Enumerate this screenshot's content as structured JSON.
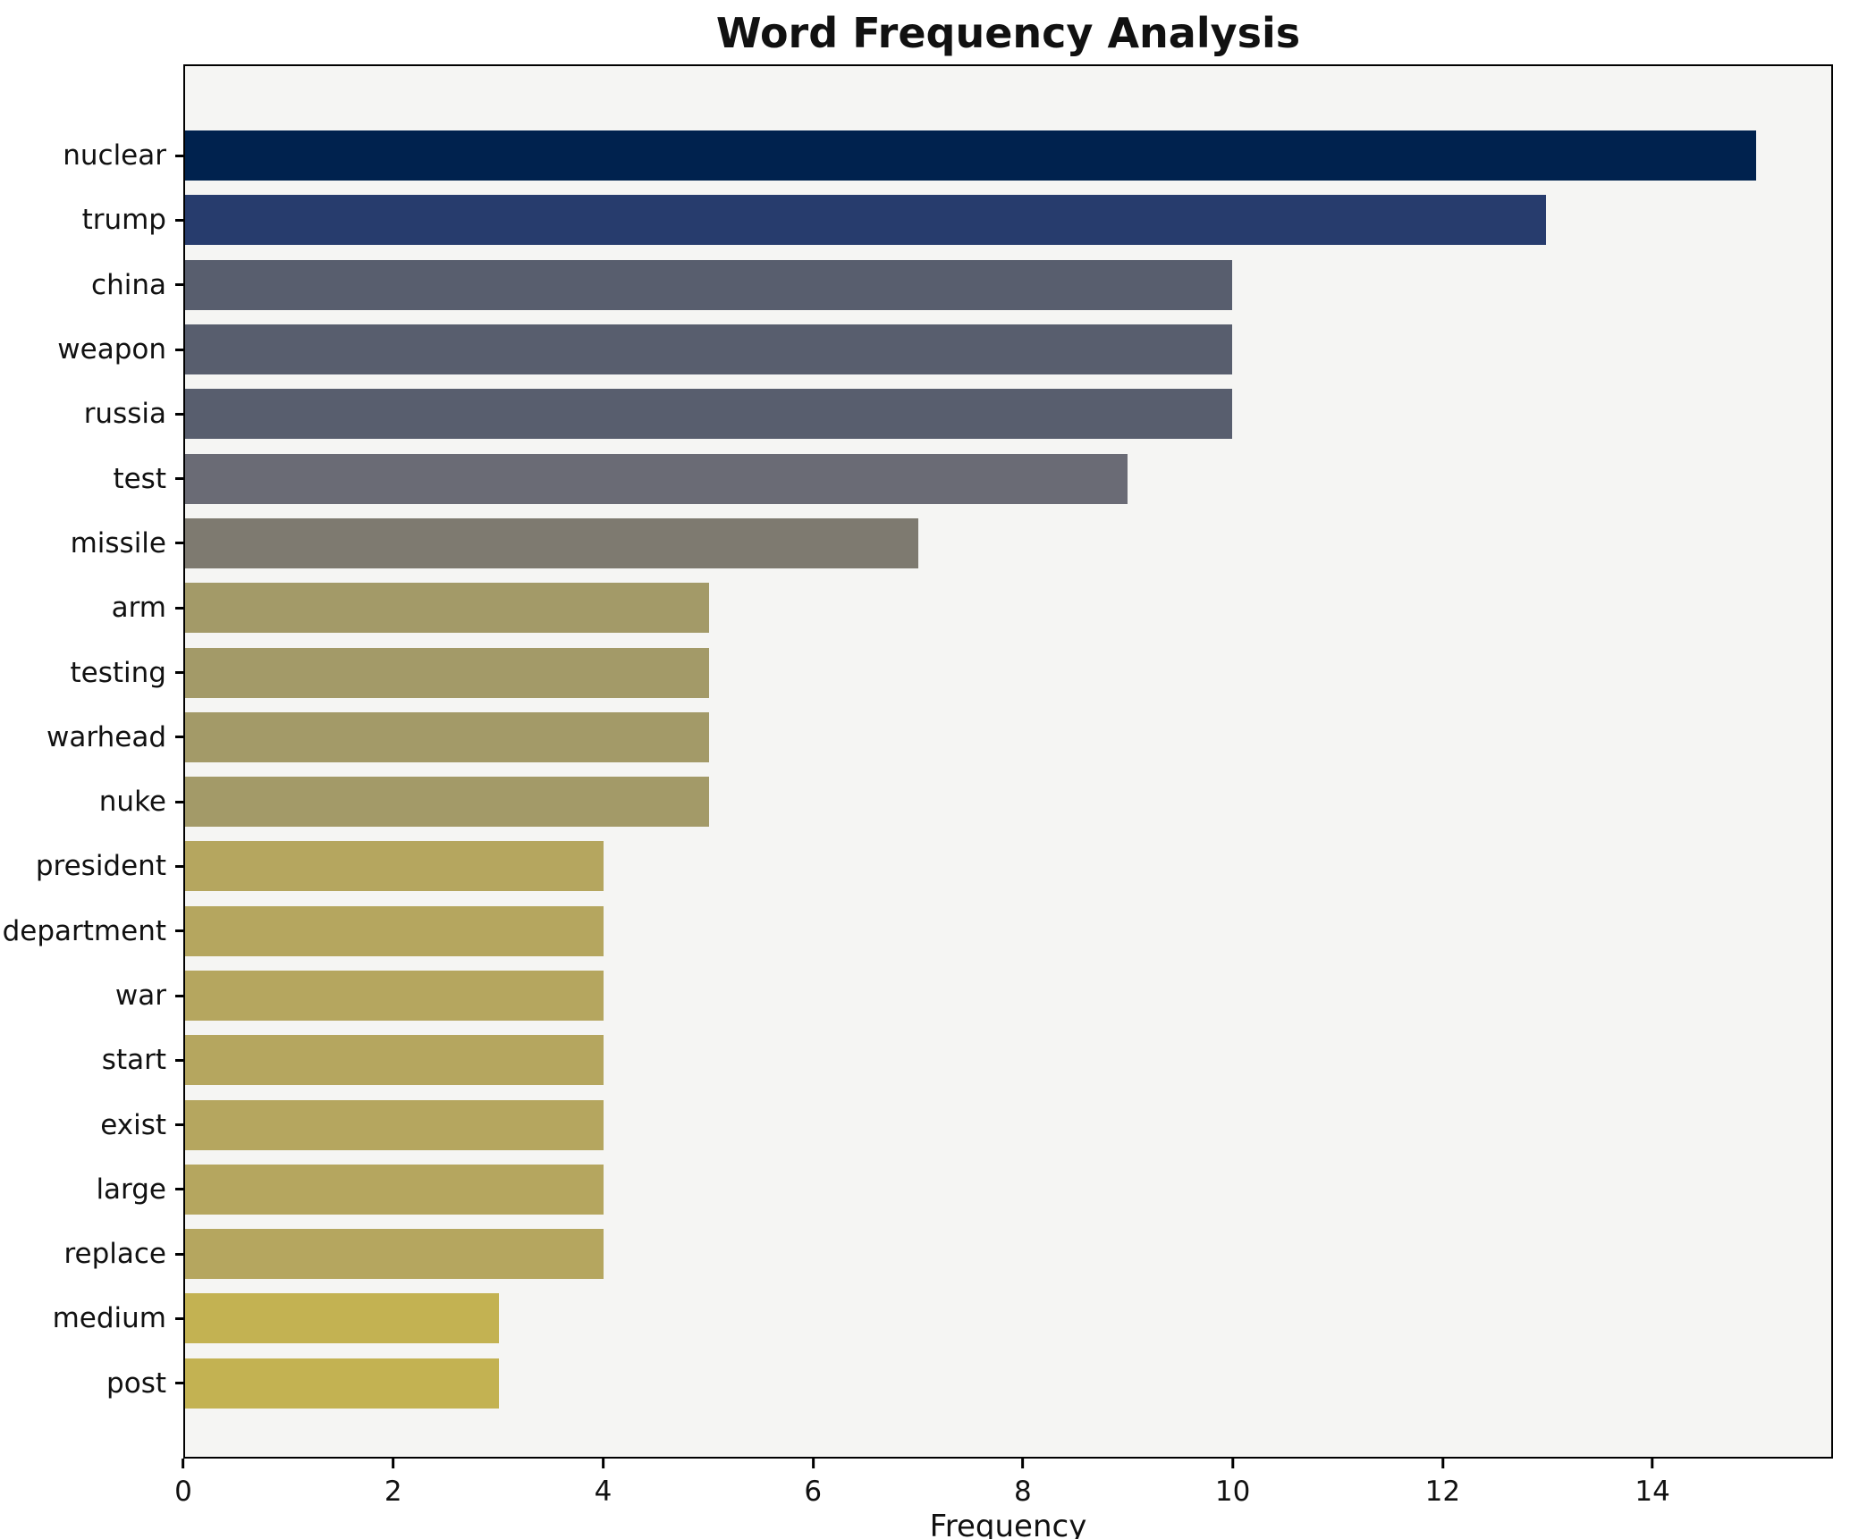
{
  "title": "Word Frequency Analysis",
  "chart_data": {
    "type": "bar",
    "orientation": "horizontal",
    "title": "Word Frequency Analysis",
    "xlabel": "Frequency",
    "ylabel": "",
    "xlim": [
      0,
      15.72
    ],
    "xticks": [
      0,
      2,
      4,
      6,
      8,
      10,
      12,
      14
    ],
    "grid": false,
    "legend": false,
    "plot_background": "#f5f5f3",
    "figure_background": "#ffffff",
    "categories": [
      "nuclear",
      "trump",
      "china",
      "weapon",
      "russia",
      "test",
      "missile",
      "arm",
      "testing",
      "warhead",
      "nuke",
      "president",
      "department",
      "war",
      "start",
      "exist",
      "large",
      "replace",
      "medium",
      "post"
    ],
    "values": [
      15,
      13,
      10,
      10,
      10,
      9,
      7,
      5,
      5,
      5,
      5,
      4,
      4,
      4,
      4,
      4,
      4,
      4,
      3,
      3
    ],
    "colors": [
      "#00224e",
      "#273c6d",
      "#585e6e",
      "#585e6e",
      "#585e6e",
      "#6a6b75",
      "#7e7a70",
      "#a39a68",
      "#a39a68",
      "#a39a68",
      "#a39a68",
      "#b5a65f",
      "#b5a65f",
      "#b5a65f",
      "#b5a65f",
      "#b5a65f",
      "#b5a65f",
      "#b5a65f",
      "#c3b252",
      "#c3b252"
    ]
  }
}
